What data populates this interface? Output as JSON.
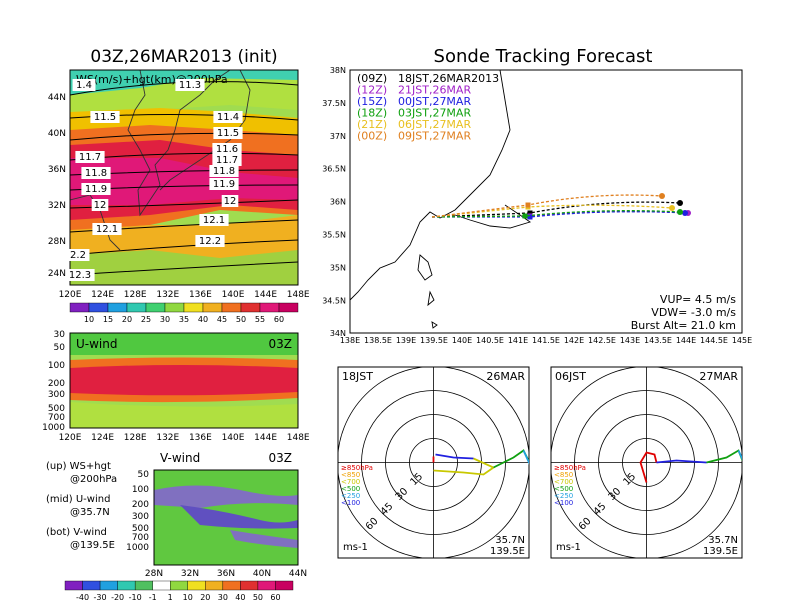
{
  "ws_map": {
    "title": "03Z,26MAR2013 (init)",
    "inner_label": "WS(m/s)+hgt(km)@200hPa",
    "lat_labels": [
      "44N",
      "40N",
      "36N",
      "32N",
      "28N",
      "24N"
    ],
    "lon_labels": [
      "120E",
      "124E",
      "128E",
      "132E",
      "136E",
      "140E",
      "144E",
      "148E"
    ],
    "contour_labels": [
      "1.4",
      "11.3",
      "11.5",
      "11.4",
      "11.5",
      "11.6",
      "11.7",
      "11.7",
      "11.8",
      "11.8",
      "11.9",
      "11.9",
      "12",
      "12",
      "12.1",
      "12.1",
      "12.2",
      "2.2",
      "12.3"
    ],
    "colorbar_ticks": [
      "10",
      "15",
      "20",
      "25",
      "30",
      "35",
      "40",
      "45",
      "50",
      "55",
      "60"
    ]
  },
  "u_panel": {
    "label": "U-wind",
    "time": "03Z",
    "p_labels": [
      "30",
      "50",
      "100",
      "200",
      "300",
      "500",
      "700",
      "1000"
    ],
    "lon_labels": [
      "120E",
      "124E",
      "128E",
      "132E",
      "136E",
      "140E",
      "144E",
      "148E"
    ]
  },
  "v_panel": {
    "label": "V-wind",
    "time": "03Z",
    "p_labels": [
      "50",
      "100",
      "200",
      "300",
      "500",
      "700",
      "1000"
    ],
    "lat_labels": [
      "28N",
      "32N",
      "36N",
      "40N",
      "44N"
    ],
    "colorbar_ticks": [
      "-40",
      "-30",
      "-20",
      "-10",
      "-1",
      "1",
      "10",
      "20",
      "30",
      "40",
      "50",
      "60"
    ]
  },
  "legend_left": {
    "l1a": "(up) WS+hgt",
    "l1b": "@200hPa",
    "l2a": "(mid) U-wind",
    "l2b": "@35.7N",
    "l3a": "(bot) V-wind",
    "l3b": "@139.5E"
  },
  "tracking": {
    "title": "Sonde Tracking Forecast",
    "lat_labels": [
      "38N",
      "37.5N",
      "37N",
      "36.5N",
      "36N",
      "35.5N",
      "35N",
      "34.5N",
      "34N"
    ],
    "lon_labels": [
      "138E",
      "138.5E",
      "139E",
      "139.5E",
      "140E",
      "140.5E",
      "141E",
      "141.5E",
      "142E",
      "142.5E",
      "143E",
      "143.5E",
      "144E",
      "144.5E",
      "145E"
    ],
    "launches": [
      {
        "code": "(09Z)",
        "time": "18JST,26MAR2013",
        "color": "#000000"
      },
      {
        "code": "(12Z)",
        "time": "21JST,26MAR",
        "color": "#a020c8"
      },
      {
        "code": "(15Z)",
        "time": "00JST,27MAR",
        "color": "#2020e0"
      },
      {
        "code": "(18Z)",
        "time": "03JST,27MAR",
        "color": "#10a010"
      },
      {
        "code": "(21Z)",
        "time": "06JST,27MAR",
        "color": "#e8c020"
      },
      {
        "code": "(00Z)",
        "time": "09JST,27MAR",
        "color": "#e08020"
      }
    ],
    "vup": "VUP= 4.5 m/s",
    "vdw": "VDW= -3.0 m/s",
    "burst": "Burst Alt= 21.0 km"
  },
  "polar1": {
    "left_label": "18JST",
    "right_label": "26MAR"
  },
  "polar2": {
    "left_label": "06JST",
    "right_label": "27MAR"
  },
  "polar_common": {
    "ring_labels": [
      "15",
      "30",
      "45",
      "60"
    ],
    "legend": [
      "≥850hPa",
      "<850",
      "<700",
      "<500",
      "<250",
      "<100"
    ],
    "legend_colors": [
      "#e00000",
      "#f0a000",
      "#c8c800",
      "#10a010",
      "#20a0e0",
      "#2020e0"
    ],
    "unit": "ms-1",
    "lat": "35.7N",
    "lon": "139.5E"
  }
}
